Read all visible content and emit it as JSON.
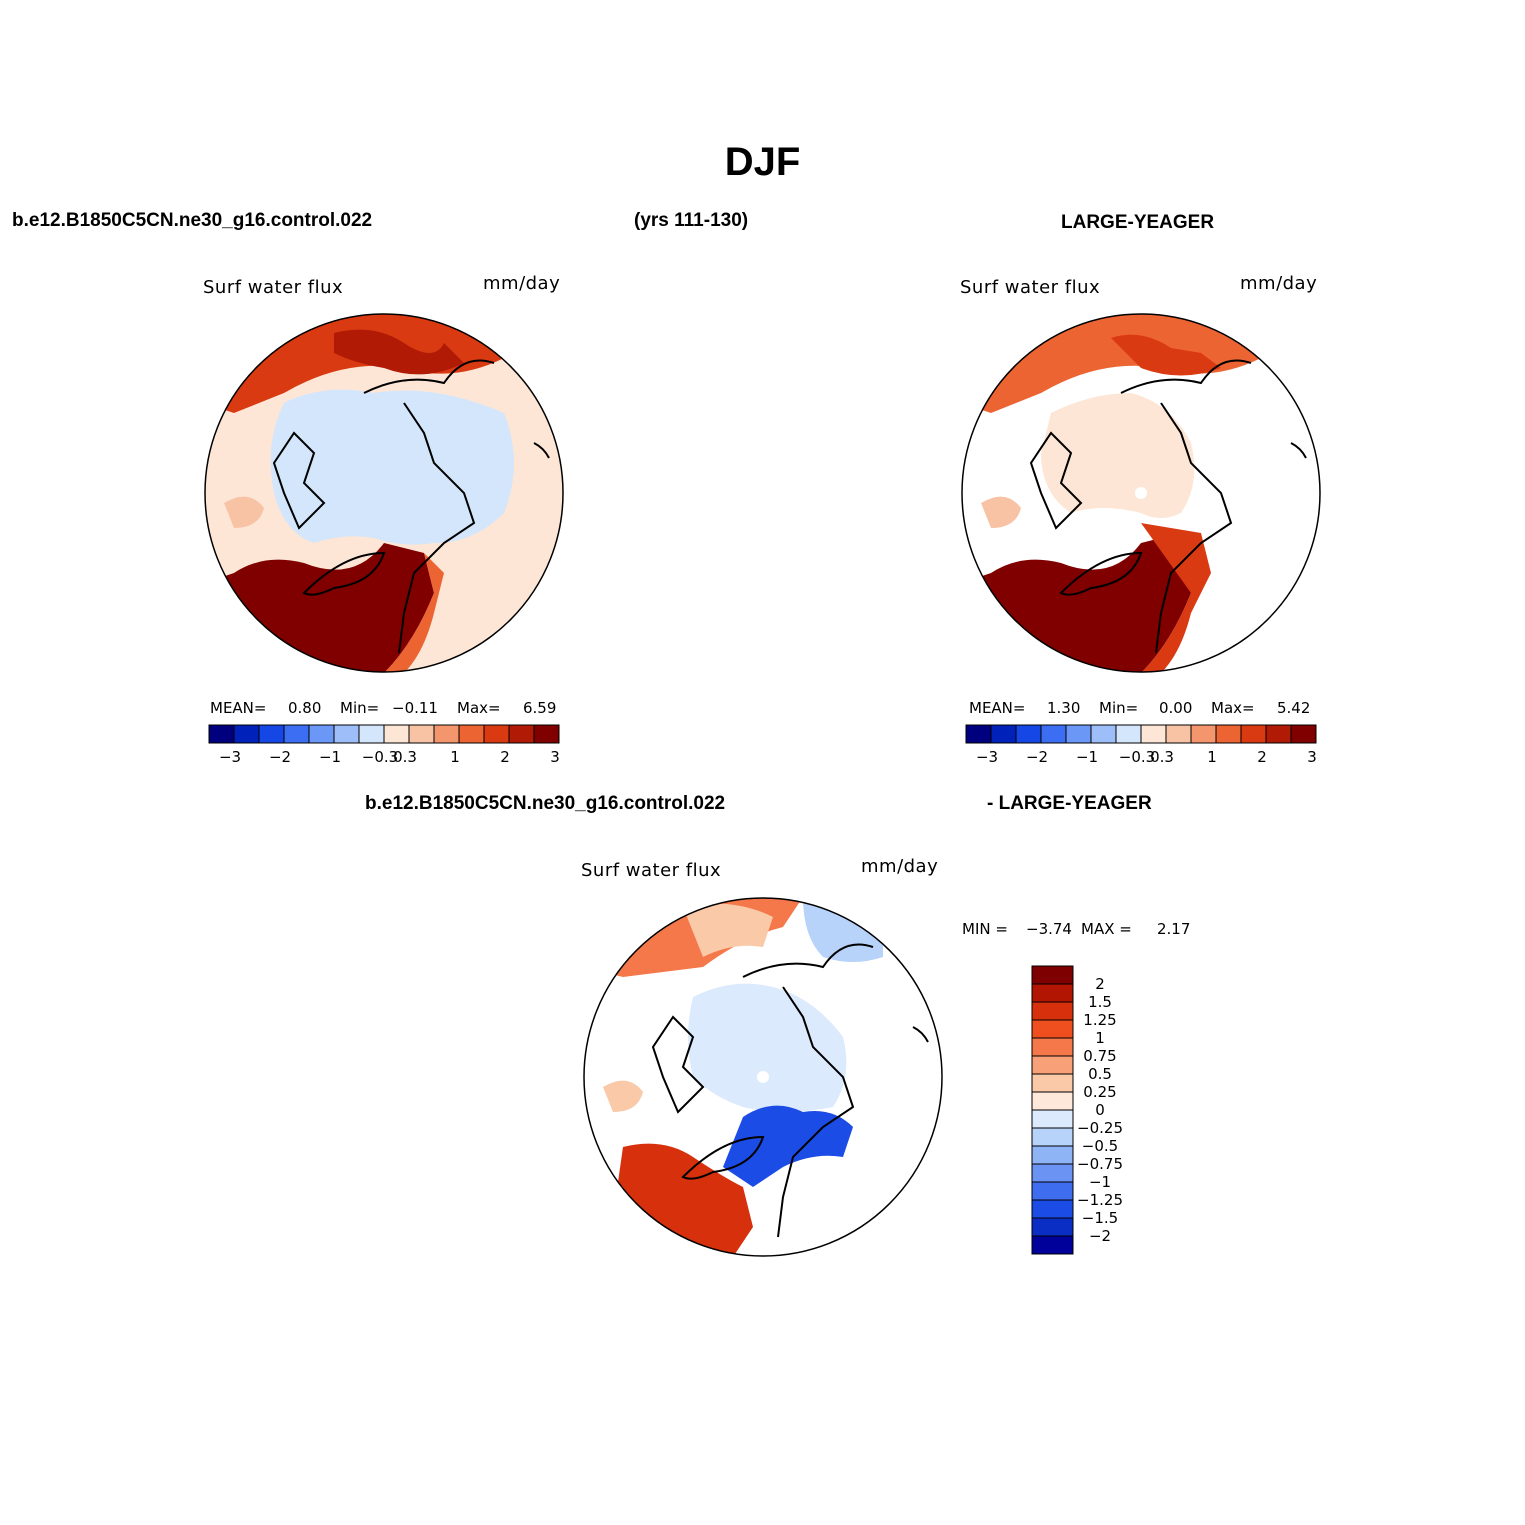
{
  "title": "DJF",
  "case_name": "b.e12.B1850C5CN.ne30_g16.control.022",
  "years": "(yrs 111-130)",
  "obs_name": "LARGE-YEAGER",
  "diff_case": "b.e12.B1850C5CN.ne30_g16.control.022",
  "diff_obs": "- LARGE-YEAGER",
  "colors": {
    "scale14": [
      "#00007f",
      "#0022bb",
      "#1447e6",
      "#3b6ef2",
      "#6b97f7",
      "#9ebef9",
      "#d3e6fb",
      "#fde6d6",
      "#f8c3a4",
      "#f3966d",
      "#ec6432",
      "#da3a12",
      "#b11b05",
      "#800000"
    ],
    "diff_scale": [
      "#7f0000",
      "#b21603",
      "#d6300c",
      "#ef4f1e",
      "#f5784a",
      "#f8a077",
      "#f9c9a8",
      "#fde8d9",
      "#dbeafc",
      "#b8d3fa",
      "#8fb4f6",
      "#6a93f3",
      "#3f6def",
      "#1c4ce6",
      "#0a2ec4",
      "#00009a"
    ]
  },
  "panels": {
    "model": {
      "field": "Surf water flux",
      "units": "mm/day",
      "mean_label": "MEAN=",
      "mean": "0.80",
      "min_label": "Min=",
      "min": "−0.11",
      "max_label": "Max=",
      "max": "6.59",
      "tick_labels": [
        "−3",
        "−2",
        "−1",
        "−0.3",
        "0.3",
        "1",
        "2",
        "3"
      ]
    },
    "obs": {
      "field": "Surf water flux",
      "units": "mm/day",
      "mean_label": "MEAN=",
      "mean": "1.30",
      "min_label": "Min=",
      "min": "0.00",
      "max_label": "Max=",
      "max": "5.42",
      "tick_labels": [
        "−3",
        "−2",
        "−1",
        "−0.3",
        "0.3",
        "1",
        "2",
        "3"
      ]
    },
    "diff": {
      "field": "Surf water flux",
      "units": "mm/day",
      "min_label": "MIN =",
      "min": "−3.74",
      "max_label": "MAX =",
      "max": "2.17",
      "levels": [
        "2",
        "1.5",
        "1.25",
        "1",
        "0.75",
        "0.5",
        "0.25",
        "0",
        "−0.25",
        "−0.5",
        "−0.75",
        "−1",
        "−1.25",
        "−1.5",
        "−2"
      ]
    }
  }
}
